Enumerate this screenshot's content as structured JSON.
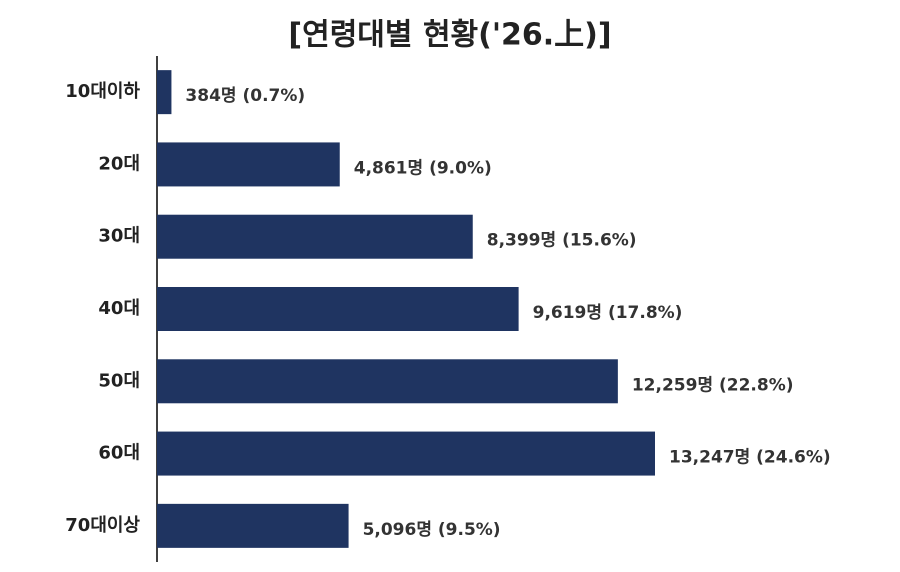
{
  "chart_data": {
    "type": "bar",
    "orientation": "horizontal",
    "title": "[연령대별 현황('26.上)]",
    "categories": [
      "10대이하",
      "20대",
      "30대",
      "40대",
      "50대",
      "60대",
      "70대이상"
    ],
    "values": [
      384,
      4861,
      8399,
      9619,
      12259,
      13247,
      5096
    ],
    "value_labels": [
      "384명 (0.7%)",
      "4,861명 (9.0%)",
      "8,399명 (15.6%)",
      "9,619명 (17.8%)",
      "12,259명 (22.8%)",
      "13,247명 (24.6%)",
      "5,096명 (9.5%)"
    ],
    "color": "#1f3461"
  }
}
